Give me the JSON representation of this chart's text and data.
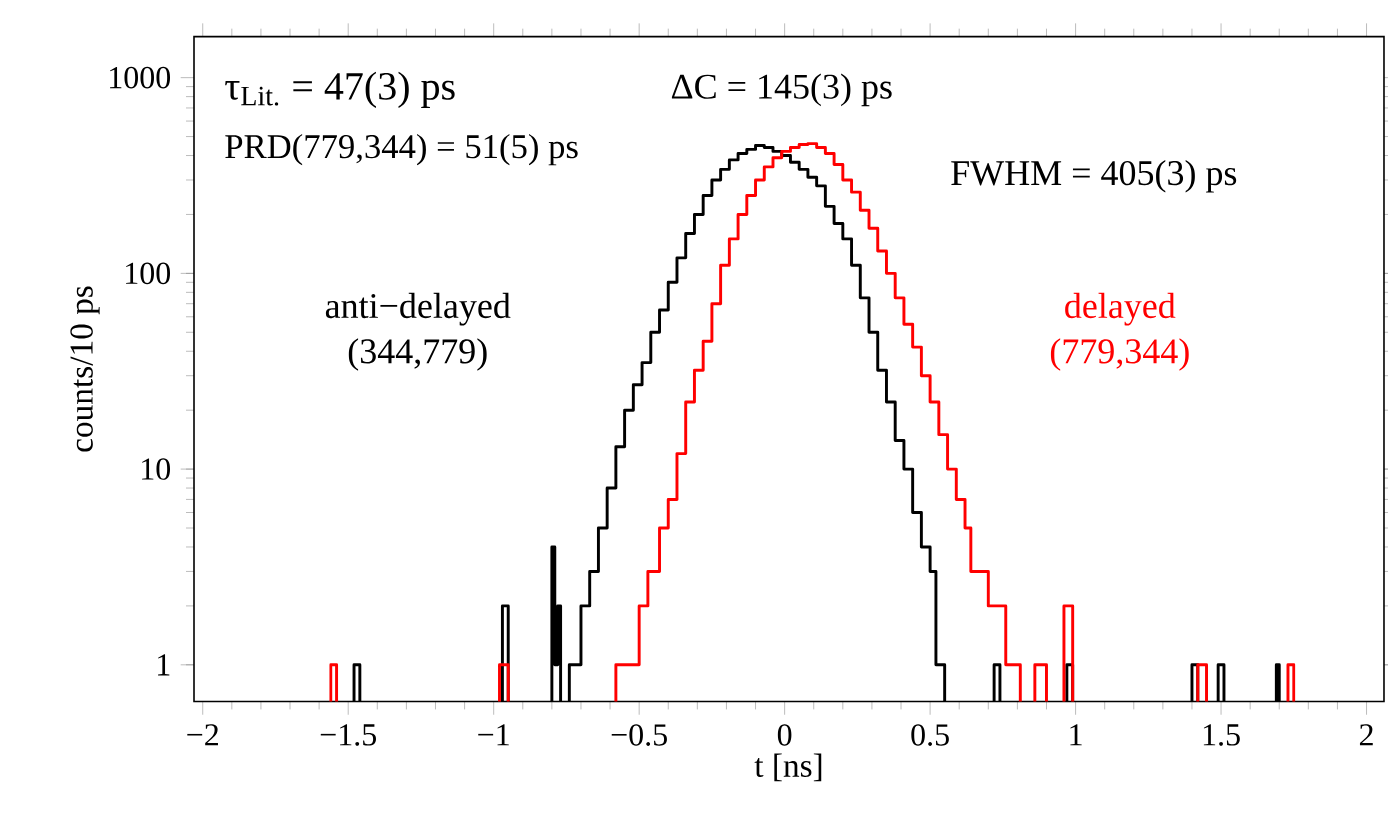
{
  "chart_data": {
    "type": "step",
    "xlabel": "t [ns]",
    "ylabel": "counts/10 ps",
    "log": "y",
    "xlim": [
      -2.03,
      2.06
    ],
    "ylim": [
      0.65,
      1620
    ],
    "xticks": [
      {
        "value": -2,
        "label": "−2"
      },
      {
        "value": -1.5,
        "label": "−1.5"
      },
      {
        "value": -1,
        "label": "−1"
      },
      {
        "value": -0.5,
        "label": "−0.5"
      },
      0,
      0.5,
      1,
      1.5,
      2
    ],
    "yticks": [
      1,
      10,
      100,
      1000
    ],
    "annotations": [
      "τ$_{Lit.}$ = 47(3) ps",
      "PRD(779,344) = 51(5) ps",
      "ΔC = 145(3) ps",
      "FWHM = 405(3) ps"
    ],
    "series": [
      {
        "name": "anti−delayed (344,779)",
        "color": "#000000",
        "x": [
          -1.48,
          -1.47,
          -1.46,
          -0.97,
          -0.96,
          -0.95,
          -0.8,
          -0.79,
          -0.78,
          -0.77,
          -0.74,
          -0.7,
          -0.67,
          -0.64,
          -0.61,
          -0.58,
          -0.55,
          -0.52,
          -0.49,
          -0.46,
          -0.43,
          -0.4,
          -0.37,
          -0.34,
          -0.31,
          -0.28,
          -0.25,
          -0.22,
          -0.19,
          -0.16,
          -0.13,
          -0.1,
          -0.07,
          -0.04,
          -0.01,
          0.02,
          0.05,
          0.08,
          0.11,
          0.14,
          0.17,
          0.2,
          0.23,
          0.26,
          0.29,
          0.32,
          0.35,
          0.38,
          0.41,
          0.44,
          0.47,
          0.5,
          0.52,
          0.54,
          0.55,
          0.72,
          0.73,
          0.74,
          0.97,
          0.98,
          0.99,
          1.4,
          1.41,
          1.42,
          1.49,
          1.5,
          1.51,
          1.69,
          1.7
        ],
        "values": [
          1,
          1,
          null,
          2,
          2,
          null,
          4,
          1,
          2,
          null,
          1,
          2,
          3,
          5,
          8,
          13,
          20,
          27,
          35,
          50,
          65,
          90,
          120,
          160,
          200,
          250,
          300,
          340,
          380,
          410,
          430,
          450,
          440,
          420,
          400,
          370,
          340,
          310,
          280,
          220,
          180,
          150,
          110,
          75,
          50,
          32,
          22,
          14,
          10,
          6,
          4,
          3,
          1,
          1,
          null,
          1,
          1,
          null,
          1,
          1,
          null,
          1,
          1,
          null,
          1,
          1,
          null,
          1,
          1
        ]
      },
      {
        "name": "delayed (779,344)",
        "color": "#ff0000",
        "x": [
          -1.56,
          -1.55,
          -1.54,
          -0.98,
          -0.96,
          -0.95,
          -0.58,
          -0.5,
          -0.47,
          -0.43,
          -0.4,
          -0.37,
          -0.34,
          -0.31,
          -0.28,
          -0.25,
          -0.22,
          -0.19,
          -0.16,
          -0.13,
          -0.1,
          -0.07,
          -0.04,
          -0.01,
          0.02,
          0.05,
          0.08,
          0.11,
          0.14,
          0.17,
          0.2,
          0.23,
          0.26,
          0.29,
          0.32,
          0.35,
          0.38,
          0.41,
          0.44,
          0.47,
          0.5,
          0.53,
          0.56,
          0.59,
          0.62,
          0.64,
          0.7,
          0.76,
          0.8,
          0.81,
          0.86,
          0.89,
          0.9,
          0.96,
          0.98,
          0.99,
          1.42,
          1.44,
          1.45,
          1.73,
          1.75
        ],
        "values": [
          1,
          1,
          null,
          1,
          1,
          null,
          1,
          2,
          3,
          5,
          7,
          12,
          22,
          32,
          45,
          70,
          110,
          150,
          200,
          250,
          300,
          350,
          390,
          420,
          440,
          455,
          460,
          440,
          410,
          360,
          300,
          260,
          210,
          170,
          130,
          100,
          75,
          55,
          42,
          30,
          22,
          15,
          10,
          7,
          5,
          3,
          2,
          1,
          1,
          null,
          1,
          1,
          null,
          2,
          2,
          null,
          1,
          1,
          null,
          1,
          1
        ]
      }
    ]
  }
}
